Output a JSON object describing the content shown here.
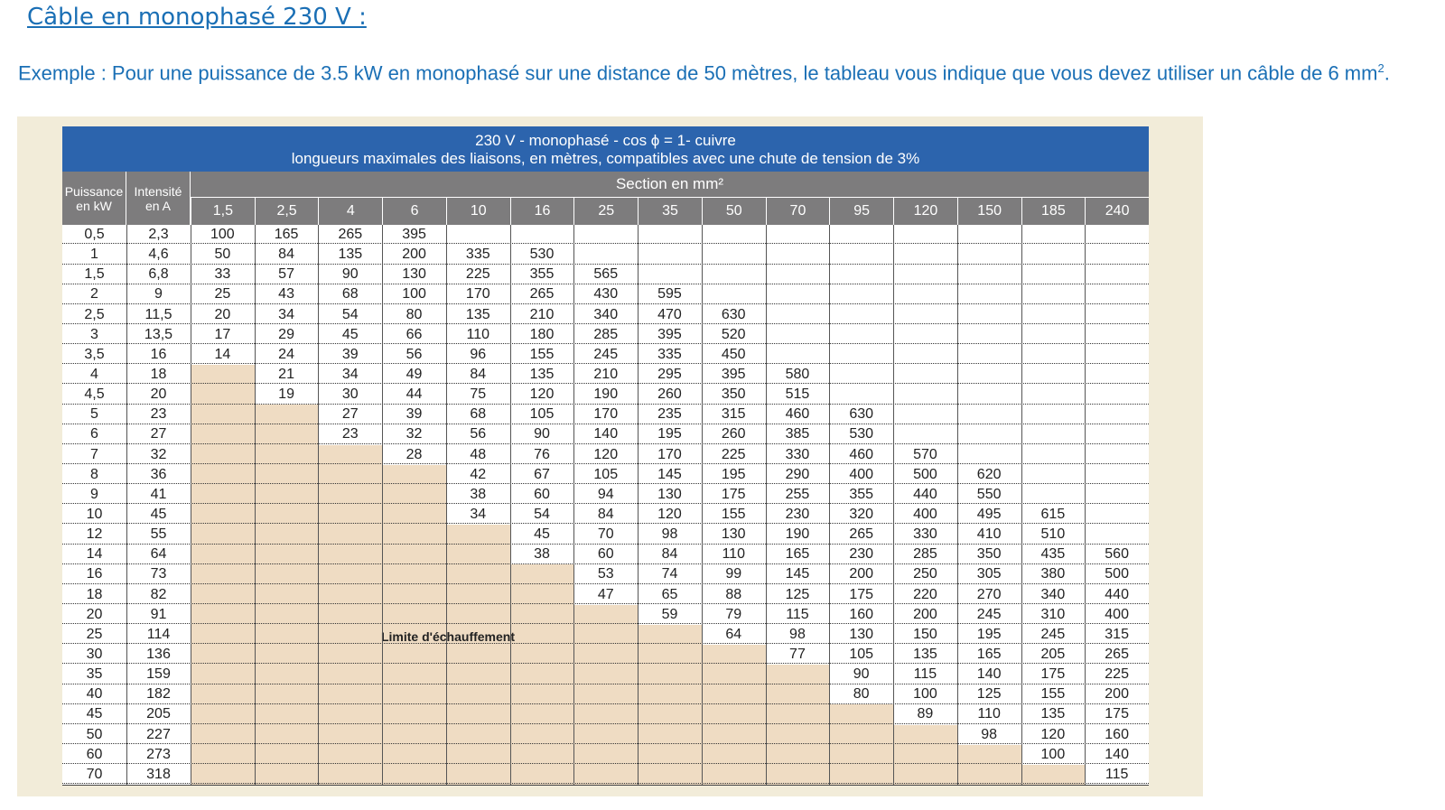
{
  "heading": "Câble en monophasé 230 V :",
  "example": {
    "text": "Exemple : Pour une puissance de 3.5 kW en monophasé sur une distance de 50 mètres, le tableau vous indique que vous devez utiliser un câble de 6 mm",
    "sup": "2",
    "end": "."
  },
  "table": {
    "title_line1": "230 V - monophasé - cos ϕ  = 1- cuivre",
    "title_line2": "longueurs maximales des liaisons, en mètres, compatibles avec une chute de tension de 3%",
    "col_puissance": "Puissance en kW",
    "col_intensite": "Intensité en A",
    "section_title": "Section en mm²",
    "sections": [
      "1,5",
      "2,5",
      "4",
      "6",
      "10",
      "16",
      "25",
      "35",
      "50",
      "70",
      "95",
      "120",
      "150",
      "185",
      "240"
    ],
    "limit_label": "Limite d'échauffement",
    "rows": [
      {
        "p": "0,5",
        "i": "2,3",
        "v": [
          "100",
          "165",
          "265",
          "395",
          "",
          "",
          "",
          "",
          "",
          "",
          "",
          "",
          "",
          "",
          ""
        ]
      },
      {
        "p": "1",
        "i": "4,6",
        "v": [
          "50",
          "84",
          "135",
          "200",
          "335",
          "530",
          "",
          "",
          "",
          "",
          "",
          "",
          "",
          "",
          ""
        ]
      },
      {
        "p": "1,5",
        "i": "6,8",
        "v": [
          "33",
          "57",
          "90",
          "130",
          "225",
          "355",
          "565",
          "",
          "",
          "",
          "",
          "",
          "",
          "",
          ""
        ]
      },
      {
        "p": "2",
        "i": "9",
        "v": [
          "25",
          "43",
          "68",
          "100",
          "170",
          "265",
          "430",
          "595",
          "",
          "",
          "",
          "",
          "",
          "",
          ""
        ]
      },
      {
        "p": "2,5",
        "i": "11,5",
        "v": [
          "20",
          "34",
          "54",
          "80",
          "135",
          "210",
          "340",
          "470",
          "630",
          "",
          "",
          "",
          "",
          "",
          ""
        ]
      },
      {
        "p": "3",
        "i": "13,5",
        "v": [
          "17",
          "29",
          "45",
          "66",
          "110",
          "180",
          "285",
          "395",
          "520",
          "",
          "",
          "",
          "",
          "",
          ""
        ]
      },
      {
        "p": "3,5",
        "i": "16",
        "v": [
          "14",
          "24",
          "39",
          "56",
          "96",
          "155",
          "245",
          "335",
          "450",
          "",
          "",
          "",
          "",
          "",
          ""
        ]
      },
      {
        "p": "4",
        "i": "18",
        "v": [
          "",
          "21",
          "34",
          "49",
          "84",
          "135",
          "210",
          "295",
          "395",
          "580",
          "",
          "",
          "",
          "",
          ""
        ]
      },
      {
        "p": "4,5",
        "i": "20",
        "v": [
          "",
          "19",
          "30",
          "44",
          "75",
          "120",
          "190",
          "260",
          "350",
          "515",
          "",
          "",
          "",
          "",
          ""
        ]
      },
      {
        "p": "5",
        "i": "23",
        "v": [
          "",
          "",
          "27",
          "39",
          "68",
          "105",
          "170",
          "235",
          "315",
          "460",
          "630",
          "",
          "",
          "",
          ""
        ]
      },
      {
        "p": "6",
        "i": "27",
        "v": [
          "",
          "",
          "23",
          "32",
          "56",
          "90",
          "140",
          "195",
          "260",
          "385",
          "530",
          "",
          "",
          "",
          ""
        ]
      },
      {
        "p": "7",
        "i": "32",
        "v": [
          "",
          "",
          "",
          "28",
          "48",
          "76",
          "120",
          "170",
          "225",
          "330",
          "460",
          "570",
          "",
          "",
          ""
        ]
      },
      {
        "p": "8",
        "i": "36",
        "v": [
          "",
          "",
          "",
          "",
          "42",
          "67",
          "105",
          "145",
          "195",
          "290",
          "400",
          "500",
          "620",
          "",
          ""
        ]
      },
      {
        "p": "9",
        "i": "41",
        "v": [
          "",
          "",
          "",
          "",
          "38",
          "60",
          "94",
          "130",
          "175",
          "255",
          "355",
          "440",
          "550",
          "",
          ""
        ]
      },
      {
        "p": "10",
        "i": "45",
        "v": [
          "",
          "",
          "",
          "",
          "34",
          "54",
          "84",
          "120",
          "155",
          "230",
          "320",
          "400",
          "495",
          "615",
          ""
        ]
      },
      {
        "p": "12",
        "i": "55",
        "v": [
          "",
          "",
          "",
          "",
          "",
          "45",
          "70",
          "98",
          "130",
          "190",
          "265",
          "330",
          "410",
          "510",
          ""
        ]
      },
      {
        "p": "14",
        "i": "64",
        "v": [
          "",
          "",
          "",
          "",
          "",
          "38",
          "60",
          "84",
          "110",
          "165",
          "230",
          "285",
          "350",
          "435",
          "560"
        ]
      },
      {
        "p": "16",
        "i": "73",
        "v": [
          "",
          "",
          "",
          "",
          "",
          "",
          "53",
          "74",
          "99",
          "145",
          "200",
          "250",
          "305",
          "380",
          "500"
        ]
      },
      {
        "p": "18",
        "i": "82",
        "v": [
          "",
          "",
          "",
          "",
          "",
          "",
          "47",
          "65",
          "88",
          "125",
          "175",
          "220",
          "270",
          "340",
          "440"
        ]
      },
      {
        "p": "20",
        "i": "91",
        "v": [
          "",
          "",
          "",
          "",
          "",
          "",
          "",
          "59",
          "79",
          "115",
          "160",
          "200",
          "245",
          "310",
          "400"
        ]
      },
      {
        "p": "25",
        "i": "114",
        "v": [
          "",
          "",
          "",
          "",
          "",
          "",
          "",
          "",
          "64",
          "98",
          "130",
          "150",
          "195",
          "245",
          "315"
        ]
      },
      {
        "p": "30",
        "i": "136",
        "v": [
          "",
          "",
          "",
          "",
          "",
          "",
          "",
          "",
          "",
          "77",
          "105",
          "135",
          "165",
          "205",
          "265"
        ]
      },
      {
        "p": "35",
        "i": "159",
        "v": [
          "",
          "",
          "",
          "",
          "",
          "",
          "",
          "",
          "",
          "",
          "90",
          "115",
          "140",
          "175",
          "225"
        ]
      },
      {
        "p": "40",
        "i": "182",
        "v": [
          "",
          "",
          "",
          "",
          "",
          "",
          "",
          "",
          "",
          "",
          "80",
          "100",
          "125",
          "155",
          "200"
        ]
      },
      {
        "p": "45",
        "i": "205",
        "v": [
          "",
          "",
          "",
          "",
          "",
          "",
          "",
          "",
          "",
          "",
          "",
          "89",
          "110",
          "135",
          "175"
        ]
      },
      {
        "p": "50",
        "i": "227",
        "v": [
          "",
          "",
          "",
          "",
          "",
          "",
          "",
          "",
          "",
          "",
          "",
          "",
          "98",
          "120",
          "160"
        ]
      },
      {
        "p": "60",
        "i": "273",
        "v": [
          "",
          "",
          "",
          "",
          "",
          "",
          "",
          "",
          "",
          "",
          "",
          "",
          "",
          "100",
          "140"
        ]
      },
      {
        "p": "70",
        "i": "318",
        "v": [
          "",
          "",
          "",
          "",
          "",
          "",
          "",
          "",
          "",
          "",
          "",
          "",
          "",
          "",
          "115"
        ]
      }
    ],
    "shade_start_col": [
      99,
      99,
      99,
      99,
      99,
      99,
      99,
      0,
      0,
      0,
      0,
      0,
      0,
      0,
      0,
      0,
      0,
      0,
      0,
      0,
      0,
      0,
      0,
      0,
      0,
      0,
      0,
      0
    ],
    "shade_end_col": [
      -1,
      -1,
      -1,
      -1,
      -1,
      -1,
      -1,
      0,
      0,
      1,
      1,
      2,
      3,
      3,
      3,
      4,
      4,
      5,
      5,
      6,
      7,
      8,
      9,
      9,
      10,
      11,
      12,
      13
    ]
  }
}
